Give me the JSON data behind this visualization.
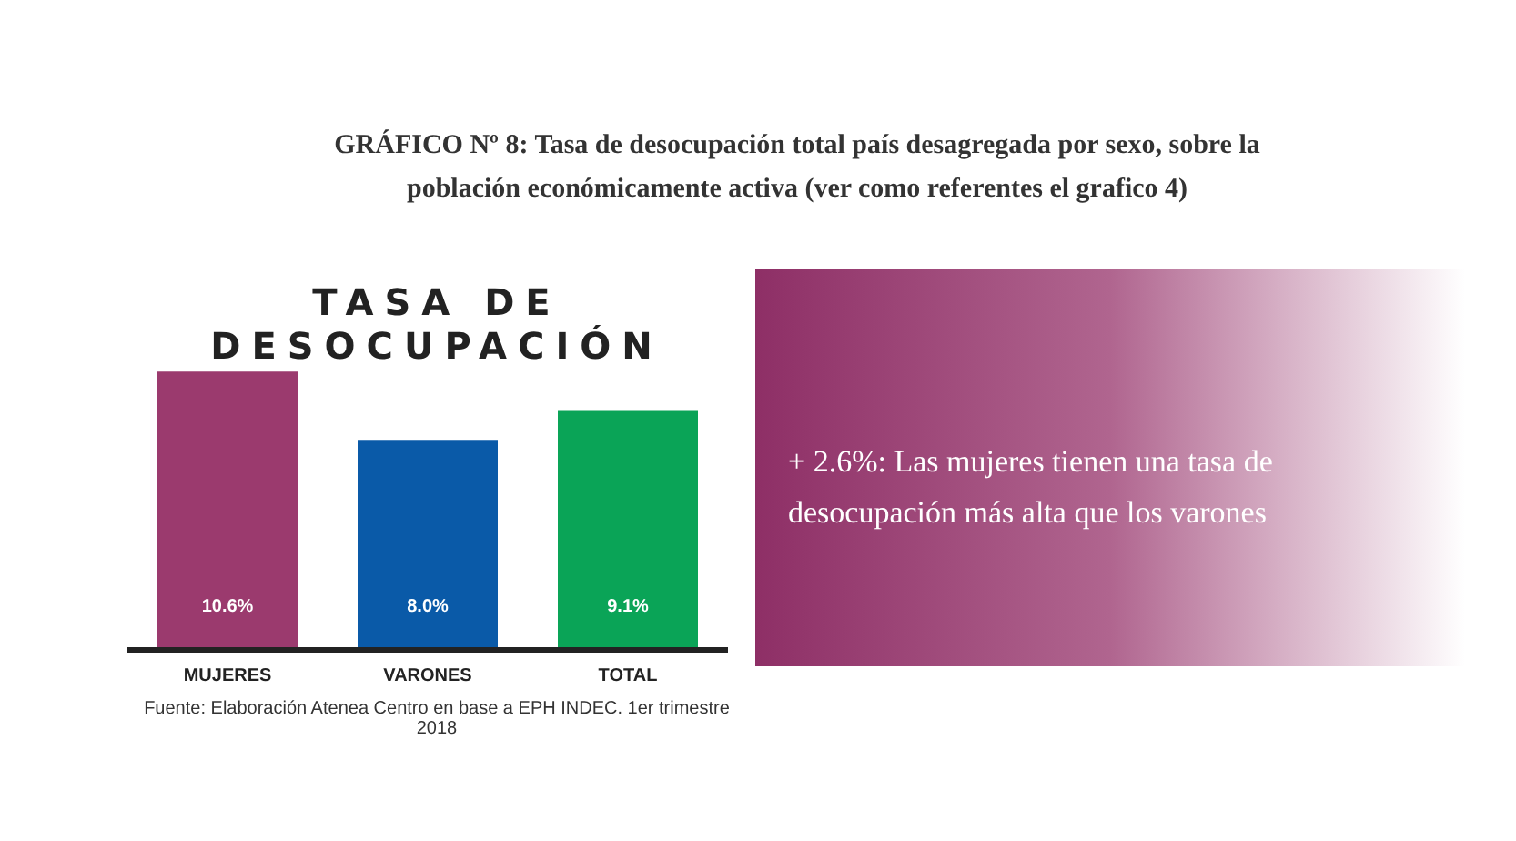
{
  "chart_data": {
    "type": "bar",
    "title": "GRÁFICO Nº 8: Tasa de desocupación total país desagregada por sexo, sobre la población económicamente activa (ver como referentes el grafico 4)",
    "subtitle": "TASA DE DESOCUPACIÓN",
    "categories": [
      "MUJERES",
      "VARONES",
      "TOTAL"
    ],
    "values": [
      10.6,
      8.0,
      9.1
    ],
    "value_labels": [
      "10.6%",
      "8.0%",
      "9.1%"
    ],
    "colors": [
      "#9b3a6e",
      "#0a5aa8",
      "#0aa457"
    ],
    "grid": false,
    "legend": false,
    "annotations": [
      "Fuente: Elaboración Atenea Centro en base a EPH INDEC. 1er trimestre 2018",
      "+ 2.6%: Las mujeres tienen una tasa de desocupación más alta que los varones"
    ]
  }
}
